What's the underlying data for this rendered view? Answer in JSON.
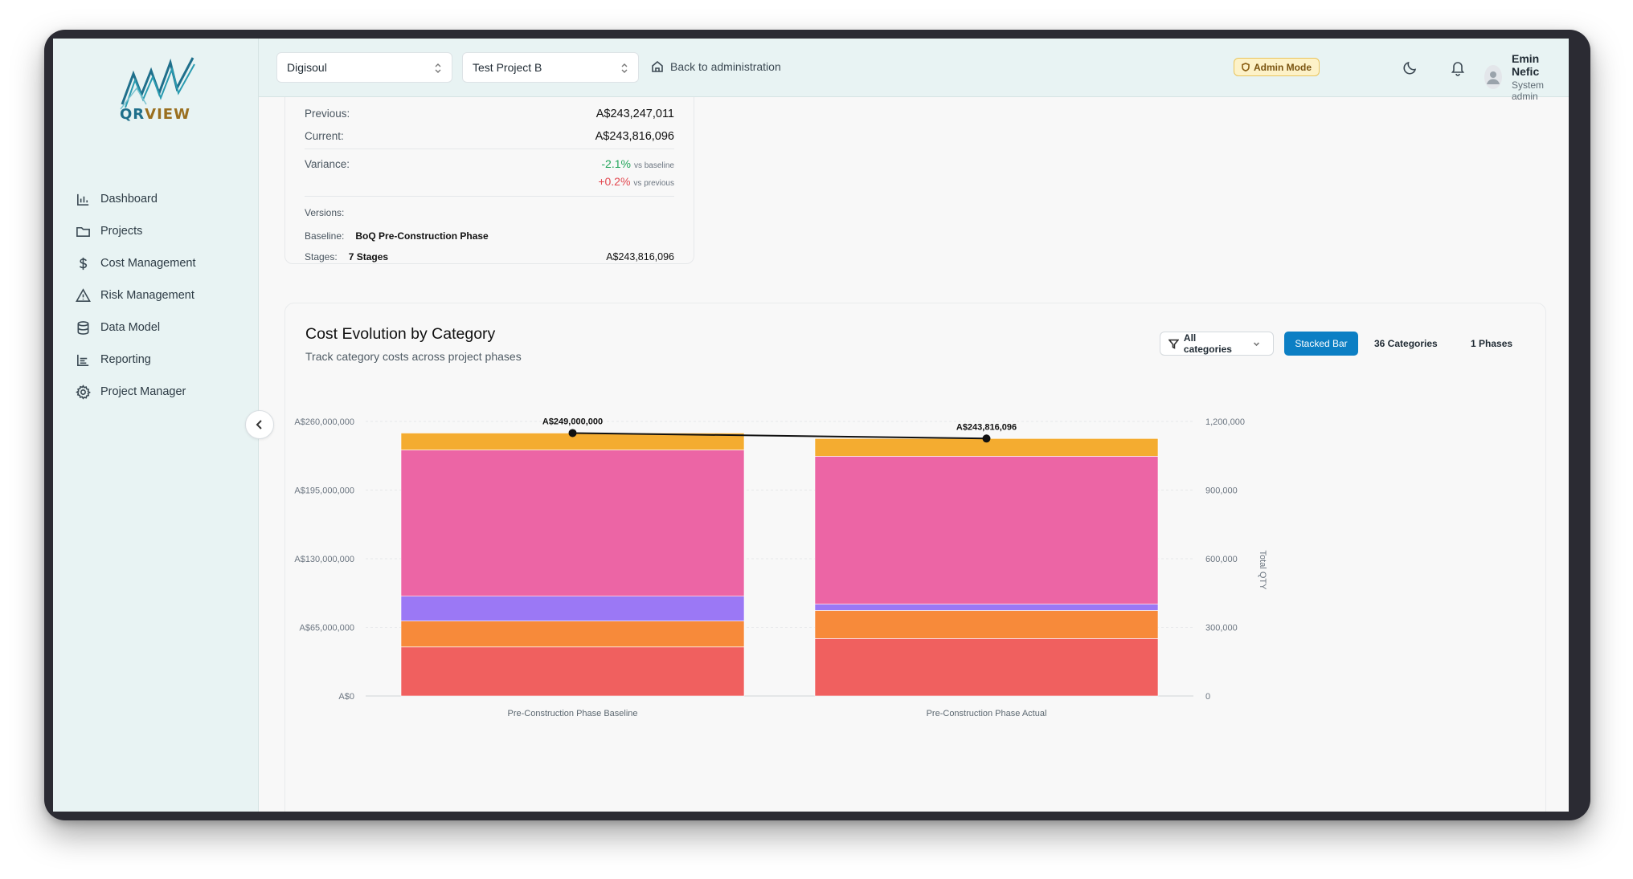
{
  "app": {
    "logo_text_q": "QR",
    "logo_text_view": "VIEW"
  },
  "sidebar": {
    "items": [
      {
        "label": "Dashboard",
        "icon": "bar-chart-icon"
      },
      {
        "label": "Projects",
        "icon": "folder-icon"
      },
      {
        "label": "Cost Management",
        "icon": "dollar-icon"
      },
      {
        "label": "Risk Management",
        "icon": "warning-icon"
      },
      {
        "label": "Data Model",
        "icon": "database-icon"
      },
      {
        "label": "Reporting",
        "icon": "line-chart-icon"
      },
      {
        "label": "Project Manager",
        "icon": "gear-icon"
      }
    ]
  },
  "topbar": {
    "org_select": "Digisoul",
    "project_select": "Test Project B",
    "back_link": "Back to administration",
    "admin_badge": "Admin Mode",
    "user_name": "Emin Nefic",
    "user_role": "System admin"
  },
  "summary": {
    "previous_label": "Previous:",
    "previous_value": "A$243,247,011",
    "current_label": "Current:",
    "current_value": "A$243,816,096",
    "variance_label": "Variance:",
    "variance_baseline": "-2.1%",
    "variance_baseline_note": "vs baseline",
    "variance_previous": "+0.2%",
    "variance_previous_note": "vs previous",
    "versions_label": "Versions:",
    "baseline_label": "Baseline:",
    "baseline_value": "BoQ Pre-Construction Phase",
    "stages_label": "Stages:",
    "stages_value": "7 Stages",
    "stages_amount": "A$243,816,096"
  },
  "chart_card": {
    "title": "Cost Evolution by Category",
    "subtitle": "Track category costs across project phases",
    "filter_label": "All categories",
    "stacked_bar_label": "Stacked Bar",
    "categories_label": "36 Categories",
    "phases_label": "1 Phases"
  },
  "chart_data": {
    "type": "bar",
    "stacked": true,
    "categories": [
      "Pre-Construction Phase Baseline",
      "Pre-Construction Phase Actual"
    ],
    "series": [
      {
        "color": "#f0605f",
        "values": [
          46500000,
          54500000
        ]
      },
      {
        "color": "#f78a3a",
        "values": [
          24500000,
          26500000
        ]
      },
      {
        "color": "#9b78f5",
        "values": [
          23500000,
          6000000
        ]
      },
      {
        "color": "#ec65a5",
        "values": [
          138500000,
          140000000
        ]
      },
      {
        "color": "#f4ac30",
        "values": [
          16000000,
          16800000
        ]
      }
    ],
    "total_line": {
      "values": [
        249000000,
        243816096
      ],
      "labels": [
        "A$249,000,000",
        "A$243,816,096"
      ]
    },
    "y_left": {
      "min": 0,
      "max": 260000000,
      "ticks": [
        "A$0",
        "A$65,000,000",
        "A$130,000,000",
        "A$195,000,000",
        "A$260,000,000"
      ]
    },
    "y_right": {
      "min": 0,
      "max": 1200000,
      "label": "Total QTY",
      "ticks": [
        "0",
        "300,000",
        "600,000",
        "900,000",
        "1,200,000"
      ]
    },
    "grid": true
  }
}
